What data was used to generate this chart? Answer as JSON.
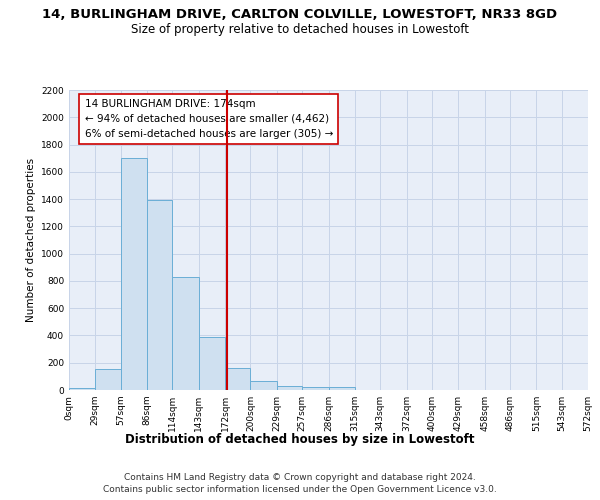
{
  "title": "14, BURLINGHAM DRIVE, CARLTON COLVILLE, LOWESTOFT, NR33 8GD",
  "subtitle": "Size of property relative to detached houses in Lowestoft",
  "xlabel": "Distribution of detached houses by size in Lowestoft",
  "ylabel": "Number of detached properties",
  "bar_edges": [
    0,
    29,
    57,
    86,
    114,
    143,
    172,
    200,
    229,
    257,
    286,
    315,
    343,
    372,
    400,
    429,
    458,
    486,
    515,
    543,
    572
  ],
  "bar_heights": [
    15,
    155,
    1700,
    1390,
    830,
    390,
    160,
    65,
    30,
    20,
    25,
    0,
    0,
    0,
    0,
    0,
    0,
    0,
    0,
    0
  ],
  "bar_color": "#cfe0f0",
  "bar_edge_color": "#6aaed6",
  "property_value": 174,
  "vline_color": "#cc0000",
  "annotation_box_text": "14 BURLINGHAM DRIVE: 174sqm\n← 94% of detached houses are smaller (4,462)\n6% of semi-detached houses are larger (305) →",
  "annotation_box_edge_color": "#cc0000",
  "ylim": [
    0,
    2200
  ],
  "yticks": [
    0,
    200,
    400,
    600,
    800,
    1000,
    1200,
    1400,
    1600,
    1800,
    2000,
    2200
  ],
  "xtick_labels": [
    "0sqm",
    "29sqm",
    "57sqm",
    "86sqm",
    "114sqm",
    "143sqm",
    "172sqm",
    "200sqm",
    "229sqm",
    "257sqm",
    "286sqm",
    "315sqm",
    "343sqm",
    "372sqm",
    "400sqm",
    "429sqm",
    "458sqm",
    "486sqm",
    "515sqm",
    "543sqm",
    "572sqm"
  ],
  "grid_color": "#c8d4e8",
  "bg_color": "#e8eef8",
  "footnote_line1": "Contains HM Land Registry data © Crown copyright and database right 2024.",
  "footnote_line2": "Contains public sector information licensed under the Open Government Licence v3.0.",
  "title_fontsize": 9.5,
  "subtitle_fontsize": 8.5,
  "xlabel_fontsize": 8.5,
  "ylabel_fontsize": 7.5,
  "tick_fontsize": 6.5,
  "annotation_fontsize": 7.5,
  "footnote_fontsize": 6.5
}
